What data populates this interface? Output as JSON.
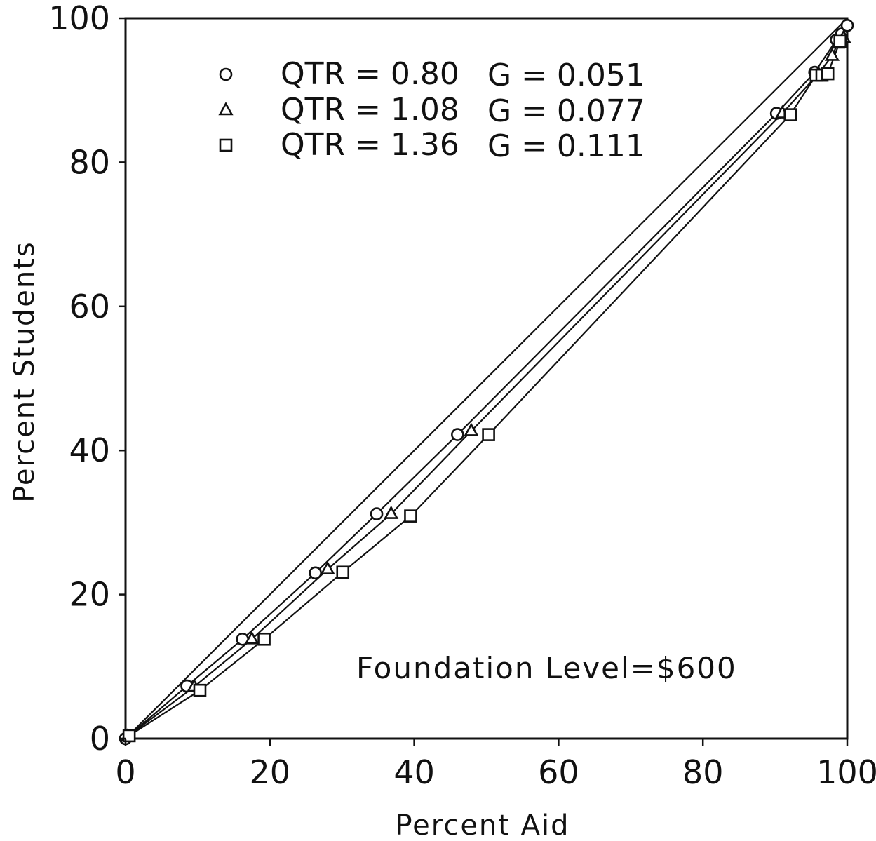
{
  "chart_data": {
    "type": "line",
    "xlabel": "Percent Aid",
    "ylabel": "Percent Students",
    "xlim": [
      0,
      100
    ],
    "ylim": [
      0,
      100
    ],
    "xticks": [
      "0",
      "20",
      "40",
      "60",
      "80",
      "100"
    ],
    "yticks": [
      "0",
      "20",
      "40",
      "60",
      "80",
      "100"
    ],
    "grid": false,
    "legend_position": "top-left",
    "annotation": "Foundation Level=$600",
    "equality_line": {
      "x": [
        0,
        100
      ],
      "y": [
        0,
        100
      ]
    },
    "series": [
      {
        "name": "QTR = 0.80",
        "legend_label": "QTR = 0.80",
        "gini_label": "G = 0.051",
        "marker": "circle",
        "x": [
          0,
          8.5,
          16.2,
          26.3,
          34.8,
          46.0,
          90.2,
          95.5,
          98.5,
          99.2,
          100
        ],
        "y": [
          0,
          7.3,
          13.8,
          23.0,
          31.2,
          42.2,
          86.8,
          92.5,
          97.0,
          97.8,
          99.0
        ]
      },
      {
        "name": "QTR = 1.08",
        "legend_label": "QTR = 1.08",
        "gini_label": "G = 0.077",
        "marker": "triangle",
        "x": [
          0.3,
          9.5,
          17.5,
          28.0,
          36.8,
          47.9,
          91.0,
          96.0,
          97.9,
          98.7,
          99.5
        ],
        "y": [
          0.3,
          7.2,
          13.8,
          23.5,
          31.2,
          42.7,
          86.8,
          92.3,
          94.8,
          96.5,
          97.3
        ]
      },
      {
        "name": "QTR = 1.36",
        "legend_label": "QTR = 1.36",
        "gini_label": "G = 0.111",
        "marker": "square",
        "x": [
          0.5,
          10.3,
          19.2,
          30.1,
          39.5,
          50.3,
          92.1,
          95.7,
          96.5,
          97.3,
          99.0
        ],
        "y": [
          0.4,
          6.7,
          13.8,
          23.1,
          30.9,
          42.2,
          86.6,
          92.1,
          92.1,
          92.3,
          96.8
        ]
      }
    ]
  }
}
